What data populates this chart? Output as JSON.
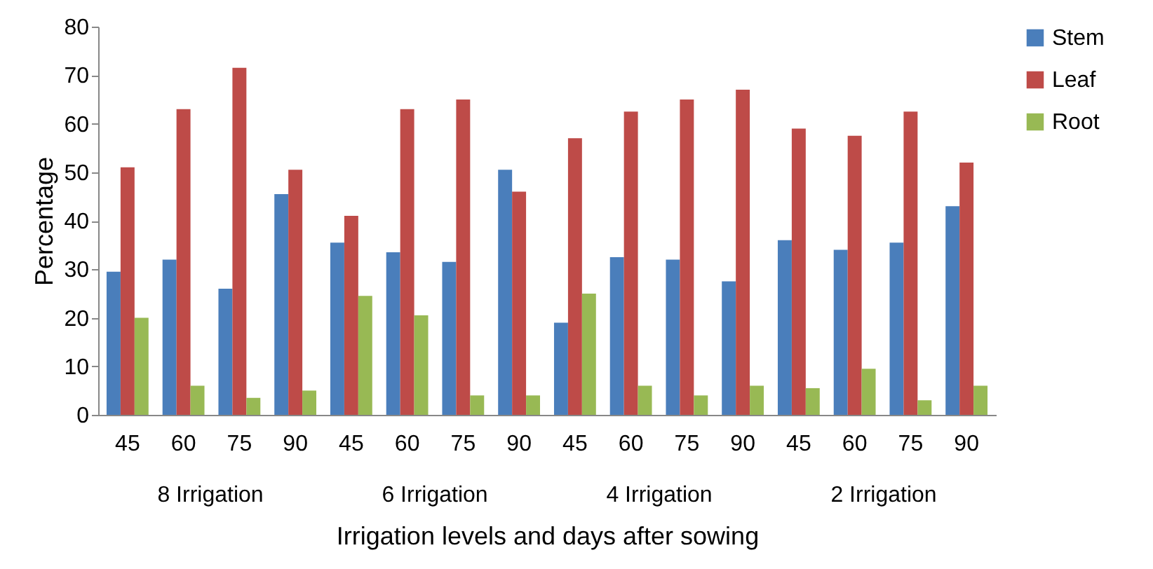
{
  "chart_data": {
    "type": "bar",
    "xlabel": "Irrigation levels and days after sowing",
    "ylabel": "Percentage",
    "categories": [
      "45",
      "60",
      "75",
      "90",
      "45",
      "60",
      "75",
      "90",
      "45",
      "60",
      "75",
      "90",
      "45",
      "60",
      "75",
      "90"
    ],
    "annotations": [
      "8 Irrigation",
      "6 Irrigation",
      "4 Irrigation",
      "2 Irrigation"
    ],
    "series": [
      {
        "name": "Stem",
        "color": "#4a7ebb",
        "values": [
          29.5,
          32,
          26,
          45.5,
          35.5,
          33.5,
          31.5,
          50.5,
          19,
          32.5,
          32,
          27.5,
          36,
          34,
          35.5,
          43
        ]
      },
      {
        "name": "Leaf",
        "color": "#be4b48",
        "values": [
          51,
          63,
          71.5,
          50.5,
          41,
          63,
          65,
          46,
          57,
          62.5,
          65,
          67,
          59,
          57.5,
          62.5,
          52
        ]
      },
      {
        "name": "Root",
        "color": "#98b954",
        "values": [
          20,
          6,
          3.5,
          5,
          24.5,
          20.5,
          4,
          4,
          25,
          6,
          4,
          6,
          5.5,
          9.5,
          3,
          6
        ]
      }
    ],
    "ylim": [
      0,
      80
    ],
    "yticks": [
      0,
      10,
      20,
      30,
      40,
      50,
      60,
      70,
      80
    ],
    "grid": false,
    "legend": "right"
  }
}
